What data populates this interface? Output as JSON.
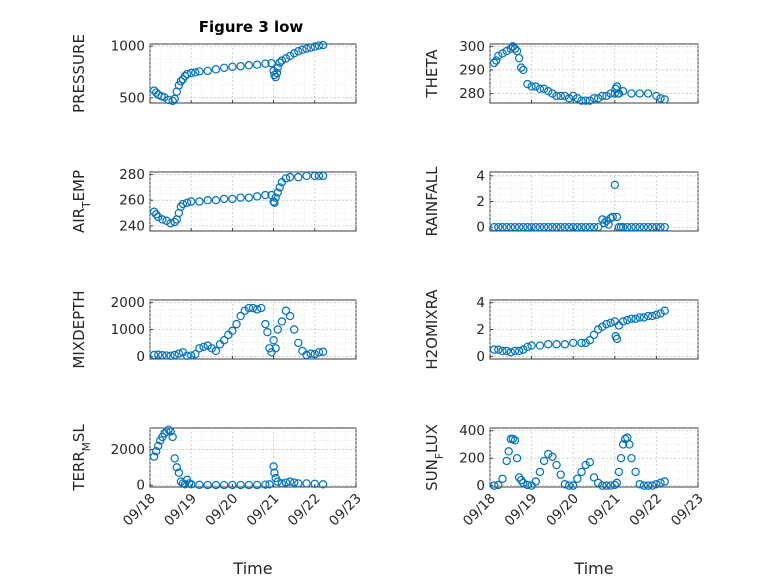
{
  "figure": {
    "title": "Figure 3 low"
  },
  "chart_data": [
    {
      "type": "scatter",
      "id": "pressure",
      "title": "Figure 3 low",
      "ylabel_text": "PRESSURE",
      "ylim": [
        450,
        1020
      ],
      "yticks": [
        500,
        1000
      ],
      "xlim": [
        0,
        5
      ],
      "xticks_labels": [
        "09/18",
        "09/19",
        "09/20",
        "09/21",
        "09/22",
        "09/23"
      ],
      "show_xticks": false,
      "xlabel": "",
      "grid": true,
      "x": [
        0.1,
        0.15,
        0.2,
        0.28,
        0.35,
        0.45,
        0.55,
        0.6,
        0.65,
        0.7,
        0.75,
        0.8,
        0.85,
        0.9,
        1.0,
        1.1,
        1.2,
        1.4,
        1.6,
        1.8,
        2.0,
        2.2,
        2.4,
        2.6,
        2.8,
        2.95,
        3.0,
        3.02,
        3.05,
        3.08,
        3.1,
        3.15,
        3.2,
        3.3,
        3.4,
        3.5,
        3.6,
        3.7,
        3.8,
        3.9,
        4.0,
        4.1,
        4.2
      ],
      "y": [
        570,
        550,
        530,
        515,
        505,
        480,
        470,
        490,
        560,
        620,
        660,
        680,
        710,
        730,
        740,
        745,
        755,
        760,
        775,
        790,
        800,
        805,
        815,
        820,
        830,
        835,
        760,
        720,
        700,
        740,
        790,
        840,
        860,
        880,
        905,
        930,
        950,
        965,
        975,
        985,
        995,
        1005,
        1010
      ]
    },
    {
      "type": "scatter",
      "id": "theta",
      "title": "",
      "ylabel_text": "THETA",
      "ylim": [
        276,
        301
      ],
      "yticks": [
        280,
        290,
        300
      ],
      "xlim": [
        0,
        5
      ],
      "xticks_labels": [
        "09/18",
        "09/19",
        "09/20",
        "09/21",
        "09/22",
        "09/23"
      ],
      "show_xticks": false,
      "xlabel": "",
      "grid": true,
      "x": [
        0.1,
        0.15,
        0.2,
        0.3,
        0.4,
        0.5,
        0.55,
        0.6,
        0.65,
        0.7,
        0.75,
        0.8,
        0.9,
        1.0,
        1.1,
        1.2,
        1.3,
        1.4,
        1.5,
        1.6,
        1.7,
        1.8,
        1.9,
        2.0,
        2.1,
        2.2,
        2.3,
        2.4,
        2.5,
        2.6,
        2.7,
        2.8,
        2.9,
        3.0,
        3.02,
        3.05,
        3.08,
        3.1,
        3.2,
        3.4,
        3.6,
        3.8,
        4.0,
        4.1,
        4.2
      ],
      "y": [
        293,
        294,
        296,
        297,
        298,
        299,
        300,
        299,
        298,
        295,
        291,
        290,
        284,
        283,
        283,
        282,
        282,
        281,
        280,
        279,
        279,
        279,
        278,
        279,
        278,
        277,
        277,
        277,
        278,
        278,
        279,
        279,
        280,
        280,
        282,
        283,
        280,
        280,
        281,
        280,
        280,
        280,
        279,
        278,
        277.5
      ]
    },
    {
      "type": "scatter",
      "id": "airtemp",
      "title": "",
      "ylabel_text": "AIR_TEMP",
      "ylim": [
        236,
        282
      ],
      "yticks": [
        240,
        260,
        280
      ],
      "xlim": [
        0,
        5
      ],
      "xticks_labels": [
        "09/18",
        "09/19",
        "09/20",
        "09/21",
        "09/22",
        "09/23"
      ],
      "show_xticks": false,
      "xlabel": "",
      "grid": true,
      "x": [
        0.1,
        0.15,
        0.2,
        0.3,
        0.4,
        0.5,
        0.6,
        0.65,
        0.7,
        0.75,
        0.8,
        0.9,
        1.0,
        1.2,
        1.4,
        1.6,
        1.8,
        2.0,
        2.2,
        2.4,
        2.6,
        2.8,
        2.95,
        3.0,
        3.02,
        3.05,
        3.1,
        3.15,
        3.2,
        3.3,
        3.4,
        3.6,
        3.8,
        4.0,
        4.1,
        4.2
      ],
      "y": [
        251,
        249,
        247,
        245,
        244,
        242,
        243,
        245,
        250,
        255,
        257,
        258,
        259,
        259,
        260,
        260,
        261,
        261,
        262,
        262,
        263,
        264,
        264,
        259,
        258,
        262,
        266,
        270,
        274,
        277,
        278,
        278,
        279,
        279,
        279,
        279
      ]
    },
    {
      "type": "scatter",
      "id": "rainfall",
      "title": "",
      "ylabel_text": "RAINFALL",
      "ylim": [
        -0.3,
        4.3
      ],
      "yticks": [
        0,
        2,
        4
      ],
      "xlim": [
        0,
        5
      ],
      "xticks_labels": [
        "09/18",
        "09/19",
        "09/20",
        "09/21",
        "09/22",
        "09/23"
      ],
      "show_xticks": false,
      "xlabel": "",
      "grid": true,
      "x": [
        0.1,
        0.2,
        0.3,
        0.4,
        0.5,
        0.6,
        0.7,
        0.8,
        0.9,
        1.0,
        1.1,
        1.2,
        1.3,
        1.4,
        1.5,
        1.6,
        1.7,
        1.8,
        1.9,
        2.0,
        2.1,
        2.2,
        2.3,
        2.4,
        2.5,
        2.6,
        2.7,
        2.75,
        2.8,
        2.85,
        2.9,
        2.95,
        3.0,
        3.05,
        3.1,
        3.15,
        3.2,
        3.3,
        3.4,
        3.5,
        3.6,
        3.7,
        3.8,
        3.9,
        4.0,
        4.1,
        4.2
      ],
      "y": [
        0,
        0,
        0,
        0,
        0,
        0,
        0,
        0,
        0,
        0,
        0,
        0,
        0,
        0,
        0,
        0,
        0,
        0,
        0,
        0,
        0,
        0,
        0,
        0,
        0,
        0,
        0.6,
        0.3,
        0.5,
        0.2,
        0.7,
        0.8,
        3.3,
        0.8,
        0,
        0,
        0,
        0,
        0,
        0,
        0,
        0,
        0,
        0,
        0,
        0,
        0
      ]
    },
    {
      "type": "scatter",
      "id": "mixdepth",
      "title": "",
      "ylabel_text": "MIXDEPTH",
      "ylim": [
        -100,
        2100
      ],
      "yticks": [
        0,
        1000,
        2000
      ],
      "xlim": [
        0,
        5
      ],
      "xticks_labels": [
        "09/18",
        "09/19",
        "09/20",
        "09/21",
        "09/22",
        "09/23"
      ],
      "show_xticks": false,
      "xlabel": "",
      "grid": true,
      "x": [
        0.1,
        0.2,
        0.3,
        0.4,
        0.5,
        0.6,
        0.7,
        0.8,
        0.9,
        1.0,
        1.1,
        1.2,
        1.3,
        1.4,
        1.5,
        1.6,
        1.7,
        1.8,
        1.9,
        2.0,
        2.1,
        2.2,
        2.3,
        2.4,
        2.5,
        2.6,
        2.7,
        2.8,
        2.85,
        2.9,
        2.95,
        3.0,
        3.05,
        3.1,
        3.2,
        3.3,
        3.4,
        3.5,
        3.6,
        3.7,
        3.8,
        3.9,
        4.0,
        4.1,
        4.2
      ],
      "y": [
        50,
        60,
        40,
        30,
        20,
        50,
        100,
        150,
        20,
        30,
        80,
        300,
        350,
        400,
        300,
        200,
        450,
        600,
        800,
        950,
        1200,
        1500,
        1700,
        1800,
        1800,
        1750,
        1800,
        1200,
        900,
        300,
        150,
        600,
        300,
        1000,
        1300,
        1700,
        1500,
        1000,
        500,
        200,
        50,
        100,
        80,
        150,
        170
      ]
    },
    {
      "type": "scatter",
      "id": "h2omixra",
      "title": "",
      "ylabel_text": "H2OMIXRA",
      "ylim": [
        -0.2,
        4.2
      ],
      "yticks": [
        0,
        2,
        4
      ],
      "xlim": [
        0,
        5
      ],
      "xticks_labels": [
        "09/18",
        "09/19",
        "09/20",
        "09/21",
        "09/22",
        "09/23"
      ],
      "show_xticks": false,
      "xlabel": "",
      "grid": true,
      "x": [
        0.1,
        0.2,
        0.3,
        0.4,
        0.5,
        0.6,
        0.7,
        0.8,
        0.9,
        1.0,
        1.2,
        1.4,
        1.6,
        1.8,
        2.0,
        2.2,
        2.3,
        2.4,
        2.5,
        2.6,
        2.7,
        2.8,
        2.9,
        3.0,
        3.02,
        3.05,
        3.1,
        3.2,
        3.3,
        3.4,
        3.5,
        3.6,
        3.7,
        3.8,
        3.9,
        4.0,
        4.1,
        4.2
      ],
      "y": [
        0.5,
        0.5,
        0.4,
        0.4,
        0.3,
        0.4,
        0.4,
        0.5,
        0.7,
        0.8,
        0.8,
        0.9,
        0.9,
        0.9,
        1.0,
        1.0,
        1.0,
        1.2,
        1.6,
        2.0,
        2.2,
        2.4,
        2.5,
        2.6,
        1.5,
        1.3,
        2.3,
        2.6,
        2.7,
        2.8,
        2.8,
        2.9,
        2.9,
        3.0,
        3.0,
        3.1,
        3.2,
        3.4
      ]
    },
    {
      "type": "scatter",
      "id": "terrmsl",
      "title": "",
      "ylabel_text": "TERR_MSL",
      "ylim": [
        -100,
        3200
      ],
      "yticks": [
        0,
        2000
      ],
      "xlim": [
        0,
        5
      ],
      "xticks_labels": [
        "09/18",
        "09/19",
        "09/20",
        "09/21",
        "09/22",
        "09/23"
      ],
      "show_xticks": true,
      "xlabel": "Time",
      "grid": true,
      "x": [
        0.1,
        0.15,
        0.2,
        0.25,
        0.3,
        0.35,
        0.4,
        0.45,
        0.5,
        0.55,
        0.6,
        0.65,
        0.7,
        0.75,
        0.8,
        0.85,
        0.9,
        0.95,
        1.0,
        1.2,
        1.4,
        1.6,
        1.8,
        2.0,
        2.2,
        2.4,
        2.6,
        2.8,
        2.9,
        3.0,
        3.02,
        3.05,
        3.1,
        3.2,
        3.3,
        3.4,
        3.5,
        3.6,
        3.8,
        4.0,
        4.2
      ],
      "y": [
        1600,
        1900,
        2200,
        2500,
        2700,
        2900,
        3000,
        3100,
        3000,
        2700,
        1500,
        1000,
        700,
        200,
        100,
        50,
        300,
        100,
        50,
        20,
        10,
        10,
        10,
        10,
        10,
        10,
        10,
        30,
        50,
        1050,
        700,
        400,
        200,
        100,
        150,
        200,
        150,
        100,
        100,
        80,
        50
      ]
    },
    {
      "type": "scatter",
      "id": "sunflux",
      "title": "",
      "ylabel_text": "SUN_FLUX",
      "ylim": [
        -10,
        420
      ],
      "yticks": [
        0,
        200,
        400
      ],
      "xlim": [
        0,
        5
      ],
      "xticks_labels": [
        "09/18",
        "09/19",
        "09/20",
        "09/21",
        "09/22",
        "09/23"
      ],
      "show_xticks": true,
      "xlabel": "Time",
      "grid": true,
      "x": [
        0.1,
        0.2,
        0.3,
        0.4,
        0.45,
        0.5,
        0.55,
        0.6,
        0.65,
        0.7,
        0.75,
        0.8,
        0.9,
        1.0,
        1.1,
        1.2,
        1.3,
        1.4,
        1.5,
        1.6,
        1.7,
        1.8,
        1.9,
        2.0,
        2.1,
        2.2,
        2.3,
        2.4,
        2.5,
        2.6,
        2.7,
        2.8,
        2.9,
        3.0,
        3.05,
        3.1,
        3.15,
        3.2,
        3.25,
        3.3,
        3.35,
        3.4,
        3.5,
        3.6,
        3.7,
        3.8,
        3.9,
        4.0,
        4.1,
        4.2
      ],
      "y": [
        0,
        5,
        50,
        180,
        250,
        340,
        340,
        330,
        200,
        60,
        40,
        20,
        5,
        0,
        30,
        100,
        180,
        230,
        210,
        150,
        80,
        10,
        0,
        0,
        50,
        100,
        150,
        170,
        60,
        20,
        0,
        0,
        0,
        5,
        20,
        100,
        200,
        300,
        340,
        350,
        300,
        200,
        100,
        10,
        0,
        0,
        0,
        10,
        20,
        30
      ]
    }
  ]
}
